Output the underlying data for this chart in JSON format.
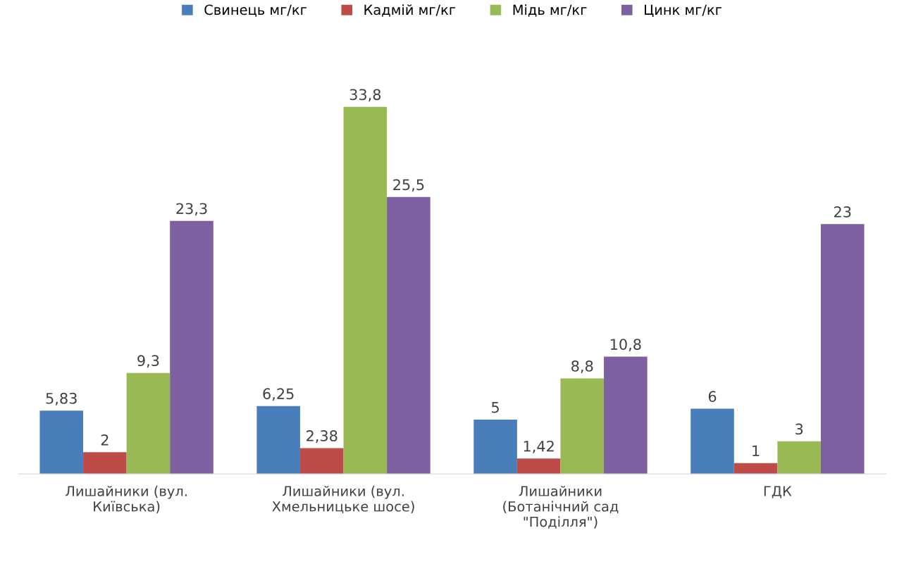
{
  "chart_data": {
    "type": "bar",
    "categories": [
      "Лишайники (вул.\nКиївська)",
      "Лишайники (вул.\nХмельницьке шосе)",
      "Лишайники\n(Ботанічний сад\n\"Поділля\")",
      "ГДК"
    ],
    "series": [
      {
        "name": "Свинець мг/кг",
        "color": "#4a7ebb",
        "values": [
          5.83,
          6.25,
          5,
          6
        ],
        "value_labels": [
          "5,83",
          "6,25",
          "5",
          "6"
        ]
      },
      {
        "name": "Кадмій мг/кг",
        "color": "#be4b48",
        "values": [
          2,
          2.38,
          1.42,
          1
        ],
        "value_labels": [
          "2",
          "2,38",
          "1,42",
          "1"
        ]
      },
      {
        "name": "Мідь мг/кг",
        "color": "#98b954",
        "values": [
          9.3,
          33.8,
          8.8,
          3
        ],
        "value_labels": [
          "9,3",
          "33,8",
          "8,8",
          "3"
        ]
      },
      {
        "name": "Цинк мг/кг",
        "color": "#7d60a0",
        "values": [
          23.3,
          25.5,
          10.8,
          23
        ],
        "value_labels": [
          "23,3",
          "25,5",
          "10,8",
          "23"
        ]
      }
    ],
    "legend": "top",
    "grid": false
  }
}
